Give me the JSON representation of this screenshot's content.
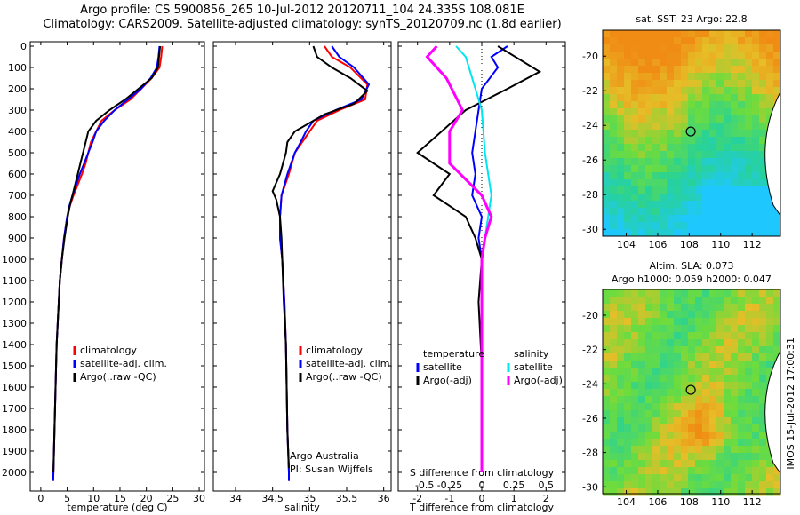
{
  "header": {
    "line1": "Argo profile: CS 5900856_265 10-Jul-2012 20120711_104 24.335S 108.081E",
    "line2": "Climatology: CARS2009. Satellite-adjusted climatology: synTS_20120709.nc (1.8d earlier)"
  },
  "credit": "IMOS 15-Jul-2012 17:00:31",
  "colors": {
    "clim": "#ff0000",
    "sat": "#0000ff",
    "argo": "#000000",
    "sat_s": "#00e5ee",
    "argo_s": "#ff00ff"
  },
  "chart_data": [
    {
      "type": "line",
      "id": "temperature",
      "xlabel": "temperature (deg C)",
      "xlim": [
        -2,
        31
      ],
      "xticks": [
        0,
        5,
        10,
        15,
        20,
        25,
        30
      ],
      "ylim": [
        0,
        2050
      ],
      "yticks": [
        0,
        100,
        200,
        300,
        400,
        500,
        600,
        700,
        800,
        900,
        1000,
        1100,
        1200,
        1300,
        1400,
        1500,
        1600,
        1700,
        1800,
        1900,
        2000
      ],
      "legend": [
        "climatology",
        "satellite-adj. clim.",
        "Argo(..raw -QC)"
      ],
      "series": [
        {
          "name": "climatology",
          "color": "clim",
          "points": [
            [
              23,
              0
            ],
            [
              22.8,
              50
            ],
            [
              22.5,
              100
            ],
            [
              21,
              150
            ],
            [
              19,
              200
            ],
            [
              17,
              250
            ],
            [
              14,
              300
            ],
            [
              11.5,
              350
            ],
            [
              10.5,
              400
            ],
            [
              9.5,
              450
            ],
            [
              9,
              500
            ],
            [
              8.5,
              550
            ],
            [
              7.8,
              600
            ],
            [
              7,
              650
            ],
            [
              6.2,
              700
            ],
            [
              5.5,
              750
            ],
            [
              5,
              800
            ],
            [
              4.7,
              850
            ],
            [
              4.4,
              900
            ],
            [
              4,
              1000
            ],
            [
              3.6,
              1100
            ],
            [
              3.4,
              1200
            ],
            [
              3.2,
              1300
            ],
            [
              3,
              1400
            ],
            [
              2.9,
              1500
            ],
            [
              2.8,
              1600
            ],
            [
              2.7,
              1700
            ],
            [
              2.6,
              1800
            ],
            [
              2.5,
              1900
            ],
            [
              2.4,
              2000
            ],
            [
              2.35,
              2040
            ]
          ]
        },
        {
          "name": "satellite-adj. clim.",
          "color": "sat",
          "points": [
            [
              22.5,
              0
            ],
            [
              22.3,
              50
            ],
            [
              22,
              100
            ],
            [
              20.8,
              150
            ],
            [
              19,
              200
            ],
            [
              16.5,
              250
            ],
            [
              14,
              300
            ],
            [
              12,
              350
            ],
            [
              10.5,
              400
            ],
            [
              9.8,
              450
            ],
            [
              9,
              500
            ],
            [
              8.2,
              550
            ],
            [
              7.4,
              600
            ],
            [
              6.7,
              650
            ],
            [
              6,
              700
            ],
            [
              5.4,
              750
            ],
            [
              5,
              800
            ],
            [
              4.7,
              850
            ],
            [
              4.4,
              900
            ],
            [
              4,
              1000
            ],
            [
              3.6,
              1100
            ],
            [
              3.4,
              1200
            ],
            [
              3.2,
              1300
            ],
            [
              3,
              1400
            ],
            [
              2.9,
              1500
            ],
            [
              2.8,
              1600
            ],
            [
              2.7,
              1700
            ],
            [
              2.6,
              1800
            ],
            [
              2.5,
              1900
            ],
            [
              2.4,
              2000
            ],
            [
              2.35,
              2040
            ]
          ]
        },
        {
          "name": "Argo(..raw -QC)",
          "color": "argo",
          "points": [
            [
              22.6,
              0
            ],
            [
              22.4,
              50
            ],
            [
              22.2,
              100
            ],
            [
              21,
              150
            ],
            [
              18.5,
              200
            ],
            [
              16,
              250
            ],
            [
              13,
              300
            ],
            [
              10.5,
              350
            ],
            [
              9,
              400
            ],
            [
              8.5,
              450
            ],
            [
              8,
              500
            ],
            [
              7.5,
              550
            ],
            [
              7,
              600
            ],
            [
              6.5,
              650
            ],
            [
              6,
              700
            ],
            [
              5.5,
              750
            ],
            [
              5.1,
              800
            ],
            [
              4.8,
              850
            ],
            [
              4.5,
              900
            ],
            [
              4,
              1000
            ],
            [
              3.6,
              1100
            ],
            [
              3.4,
              1200
            ],
            [
              3.2,
              1300
            ],
            [
              3,
              1400
            ],
            [
              2.9,
              1500
            ],
            [
              2.8,
              1600
            ],
            [
              2.7,
              1700
            ],
            [
              2.6,
              1800
            ],
            [
              2.5,
              1900
            ],
            [
              2.4,
              2000
            ]
          ]
        }
      ]
    },
    {
      "type": "line",
      "id": "salinity",
      "xlabel": "salinity",
      "xlim": [
        33.7,
        36.1
      ],
      "xticks": [
        34,
        34.5,
        35,
        35.5,
        36
      ],
      "ylim": [
        0,
        2050
      ],
      "legend": [
        "climatology",
        "satellite-adj. clim.",
        "Argo(..raw -QC)"
      ],
      "notes": [
        "Argo Australia",
        "PI: Susan Wijffels"
      ],
      "series": [
        {
          "name": "climatology",
          "color": "clim",
          "points": [
            [
              35.2,
              0
            ],
            [
              35.3,
              50
            ],
            [
              35.55,
              100
            ],
            [
              35.78,
              180
            ],
            [
              35.75,
              250
            ],
            [
              35.4,
              300
            ],
            [
              35.1,
              350
            ],
            [
              35,
              400
            ],
            [
              34.9,
              450
            ],
            [
              34.8,
              500
            ],
            [
              34.72,
              600
            ],
            [
              34.62,
              700
            ],
            [
              34.6,
              800
            ],
            [
              34.6,
              900
            ],
            [
              34.63,
              1000
            ],
            [
              34.66,
              1200
            ],
            [
              34.68,
              1400
            ],
            [
              34.69,
              1600
            ],
            [
              34.7,
              1800
            ],
            [
              34.72,
              2000
            ],
            [
              34.72,
              2040
            ]
          ]
        },
        {
          "name": "satellite-adj. clim.",
          "color": "sat",
          "points": [
            [
              35.3,
              0
            ],
            [
              35.4,
              50
            ],
            [
              35.6,
              100
            ],
            [
              35.8,
              180
            ],
            [
              35.7,
              250
            ],
            [
              35.35,
              300
            ],
            [
              35.05,
              350
            ],
            [
              34.95,
              400
            ],
            [
              34.88,
              450
            ],
            [
              34.8,
              500
            ],
            [
              34.7,
              600
            ],
            [
              34.62,
              700
            ],
            [
              34.6,
              800
            ],
            [
              34.6,
              900
            ],
            [
              34.63,
              1000
            ],
            [
              34.66,
              1200
            ],
            [
              34.68,
              1400
            ],
            [
              34.69,
              1600
            ],
            [
              34.7,
              1800
            ],
            [
              34.72,
              2000
            ],
            [
              34.72,
              2040
            ]
          ]
        },
        {
          "name": "Argo(..raw -QC)",
          "color": "argo",
          "points": [
            [
              35.05,
              0
            ],
            [
              35.1,
              50
            ],
            [
              35.3,
              100
            ],
            [
              35.55,
              150
            ],
            [
              35.78,
              210
            ],
            [
              35.6,
              270
            ],
            [
              35.2,
              320
            ],
            [
              34.8,
              400
            ],
            [
              34.7,
              450
            ],
            [
              34.68,
              500
            ],
            [
              34.6,
              600
            ],
            [
              34.5,
              680
            ],
            [
              34.55,
              720
            ],
            [
              34.6,
              800
            ],
            [
              34.62,
              900
            ],
            [
              34.63,
              1000
            ],
            [
              34.65,
              1200
            ],
            [
              34.68,
              1400
            ],
            [
              34.69,
              1600
            ],
            [
              34.7,
              1800
            ],
            [
              34.72,
              1980
            ]
          ]
        }
      ]
    },
    {
      "type": "line",
      "id": "difference",
      "xlabel": "T difference from climatology",
      "xlabel2": "S difference from climatology",
      "xlim": [
        -2.6,
        2.6
      ],
      "xticks": [
        -2,
        -1,
        0,
        1,
        2
      ],
      "xticks_s_labels": [
        "-0.5",
        "-0.25",
        "0",
        "0.25",
        "0.5"
      ],
      "ylim": [
        0,
        2050
      ],
      "legend": {
        "temperature": [
          "temperature",
          "satellite",
          "Argo(-adj)"
        ],
        "salinity": [
          "salinity",
          "satellite",
          "Argo(-adj)"
        ]
      },
      "series": [
        {
          "name": "temperature satellite",
          "color": "sat",
          "points": [
            [
              0.8,
              0
            ],
            [
              0.3,
              50
            ],
            [
              0.5,
              100
            ],
            [
              0,
              200
            ],
            [
              -0.1,
              300
            ],
            [
              -0.2,
              400
            ],
            [
              -0.3,
              500
            ],
            [
              -0.2,
              600
            ],
            [
              -0.3,
              700
            ],
            [
              0,
              800
            ],
            [
              -0.1,
              900
            ],
            [
              0,
              1000
            ],
            [
              0,
              1500
            ],
            [
              0,
              2000
            ]
          ]
        },
        {
          "name": "temperature Argo(-adj)",
          "color": "argo",
          "points": [
            [
              0.5,
              0
            ],
            [
              1.8,
              120
            ],
            [
              0.8,
              200
            ],
            [
              -0.5,
              300
            ],
            [
              -2,
              500
            ],
            [
              -1,
              600
            ],
            [
              -1.5,
              700
            ],
            [
              -0.5,
              800
            ],
            [
              -0.2,
              900
            ],
            [
              0,
              1000
            ],
            [
              -0.1,
              1200
            ],
            [
              0,
              1500
            ],
            [
              0,
              2000
            ]
          ]
        },
        {
          "name": "salinity satellite",
          "color": "sat_s",
          "points": [
            [
              -0.8,
              0
            ],
            [
              -0.5,
              50
            ],
            [
              -0.3,
              150
            ],
            [
              0,
              300
            ],
            [
              0.1,
              500
            ],
            [
              0.3,
              700
            ],
            [
              0.2,
              800
            ],
            [
              0.1,
              900
            ],
            [
              0,
              1000
            ],
            [
              0,
              1500
            ],
            [
              0,
              2000
            ]
          ]
        },
        {
          "name": "salinity Argo(-adj)",
          "color": "argo_s",
          "points": [
            [
              -1.4,
              0
            ],
            [
              -1.7,
              50
            ],
            [
              -1.1,
              150
            ],
            [
              -0.6,
              300
            ],
            [
              -1,
              400
            ],
            [
              -1,
              550
            ],
            [
              0,
              700
            ],
            [
              0.3,
              800
            ],
            [
              0.1,
              900
            ],
            [
              0,
              1000
            ],
            [
              0,
              1500
            ],
            [
              0,
              2000
            ]
          ]
        }
      ]
    },
    {
      "type": "heatmap",
      "id": "sst-map",
      "title": "sat. SST: 23 Argo: 22.8",
      "xticks": [
        104,
        106,
        108,
        110,
        112
      ],
      "yticks": [
        -20,
        -22,
        -24,
        -26,
        -28,
        -30
      ],
      "xlim": [
        102.5,
        113.8
      ],
      "ylim": [
        -30.4,
        -18.5
      ],
      "marker": [
        108.1,
        -24.35
      ]
    },
    {
      "type": "heatmap",
      "id": "sla-map",
      "title": "Altim. SLA: 0.073",
      "subtitle": "Argo h1000: 0.059 h2000: 0.047",
      "xticks": [
        104,
        106,
        108,
        110,
        112
      ],
      "yticks": [
        -20,
        -22,
        -24,
        -26,
        -28,
        -30
      ],
      "xlim": [
        102.5,
        113.8
      ],
      "ylim": [
        -30.4,
        -18.5
      ],
      "marker": [
        108.1,
        -24.35
      ]
    }
  ]
}
